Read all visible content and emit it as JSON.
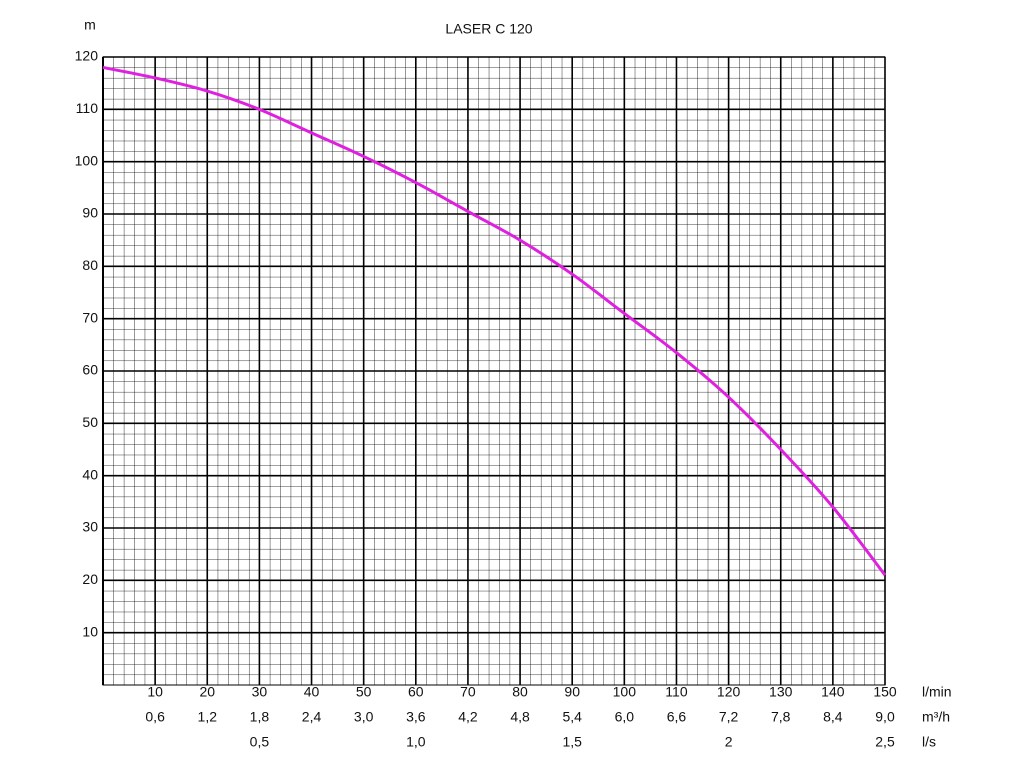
{
  "chart_data": {
    "type": "line",
    "title": "LASER C 120",
    "y_label": "m",
    "x_label": "l/min",
    "x2_label": "m³/h",
    "x3_label": "l/s",
    "x": [
      0,
      10,
      20,
      30,
      40,
      50,
      60,
      70,
      80,
      90,
      100,
      110,
      120,
      130,
      140,
      150
    ],
    "series": [
      {
        "color": "#e020e0",
        "values": [
          118,
          116,
          113.5,
          110,
          105.5,
          101,
          96,
          90.5,
          85,
          78.5,
          71,
          63.5,
          55,
          45,
          34,
          21
        ]
      }
    ],
    "xlim": [
      0,
      150
    ],
    "xticks": [
      10,
      20,
      30,
      40,
      50,
      60,
      70,
      80,
      90,
      100,
      110,
      120,
      130,
      140,
      150
    ],
    "ylim": [
      0,
      120
    ],
    "yticks": [
      10,
      20,
      30,
      40,
      50,
      60,
      70,
      80,
      90,
      100,
      110,
      120
    ],
    "x2lim": [
      0,
      9
    ],
    "x2ticks": [
      {
        "value": 0.6,
        "label": "0,6"
      },
      {
        "value": 1.2,
        "label": "1,2"
      },
      {
        "value": 1.8,
        "label": "1,8"
      },
      {
        "value": 2.4,
        "label": "2,4"
      },
      {
        "value": 3.0,
        "label": "3,0"
      },
      {
        "value": 3.6,
        "label": "3,6"
      },
      {
        "value": 4.2,
        "label": "4,2"
      },
      {
        "value": 4.8,
        "label": "4,8"
      },
      {
        "value": 5.4,
        "label": "5,4"
      },
      {
        "value": 6.0,
        "label": "6,0"
      },
      {
        "value": 6.6,
        "label": "6,6"
      },
      {
        "value": 7.2,
        "label": "7,2"
      },
      {
        "value": 7.8,
        "label": "7,8"
      },
      {
        "value": 8.4,
        "label": "8,4"
      },
      {
        "value": 9.0,
        "label": "9,0"
      }
    ],
    "x3lim": [
      0,
      2.5
    ],
    "x3ticks": [
      {
        "value": 0.5,
        "label": "0,5"
      },
      {
        "value": 1.0,
        "label": "1,0"
      },
      {
        "value": 1.5,
        "label": "1,5"
      },
      2,
      {
        "value": 2.5,
        "label": "2,5"
      }
    ],
    "grid": true
  }
}
